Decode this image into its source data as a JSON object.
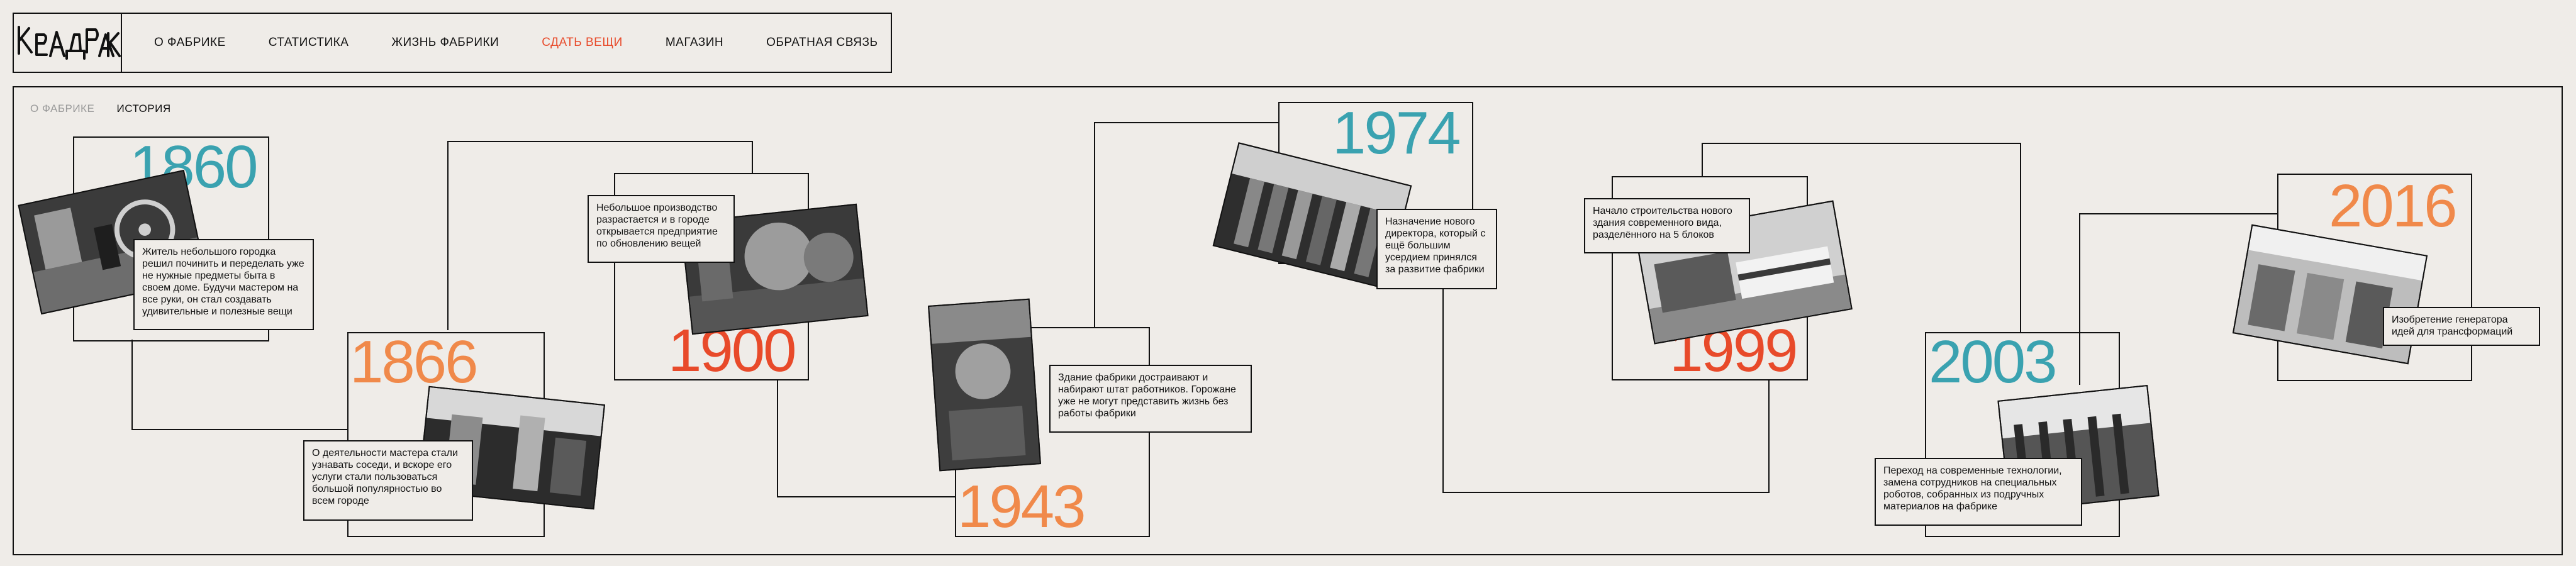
{
  "logo": {
    "text": "КВАДРАК"
  },
  "nav": [
    {
      "label": "О ФАБРИКЕ",
      "active": false
    },
    {
      "label": "СТАТИСТИКА",
      "active": false
    },
    {
      "label": "ЖИЗНЬ ФАБРИКИ",
      "active": false
    },
    {
      "label": "СДАТЬ ВЕЩИ",
      "active": true
    },
    {
      "label": "МАГАЗИН",
      "active": false
    },
    {
      "label": "ОБРАТНАЯ СВЯЗЬ",
      "active": false
    }
  ],
  "breadcrumb": {
    "prev": "О ФАБРИКЕ",
    "current": "ИСТОРИЯ"
  },
  "colors": {
    "teal": "#3aa2b0",
    "orange": "#f0894a",
    "red": "#e84a2a",
    "accent": "#e84a2a"
  },
  "timeline": [
    {
      "year": "1860",
      "color": "#3aa2b0",
      "caption": "Житель небольшого городка решил починить и переделать уже не нужные предметы быта в своем доме. Будучи мастером на все руки, он стал создавать удивительные и полезные вещи"
    },
    {
      "year": "1866",
      "color": "#f0894a",
      "caption": "О деятельности мастера стали узнавать соседи, и вскоре его услуги стали пользоваться большой популярностью во всем городе"
    },
    {
      "year": "1900",
      "color": "#e84a2a",
      "caption": "Небольшое производство разрастается и в городе открывается предприятие по обновлению вещей"
    },
    {
      "year": "1943",
      "color": "#f0894a",
      "caption": "Здание фабрики достраивают и набирают штат работников. Горожане уже не могут представить жизнь без работы фабрики"
    },
    {
      "year": "1974",
      "color": "#3aa2b0",
      "caption": "Назначение нового директора, который с ещё большим усердием принялся за развитие фабрики"
    },
    {
      "year": "1999",
      "color": "#e84a2a",
      "caption": "Начало строительства нового здания современного вида, разделённого на 5 блоков"
    },
    {
      "year": "2003",
      "color": "#3aa2b0",
      "caption": "Переход на современные технологии, замена сотрудников на специальных роботов, собранных из подручных материалов на фабрике"
    },
    {
      "year": "2016",
      "color": "#f0894a",
      "caption": "Изобретение генератора идей для трансформаций"
    }
  ]
}
